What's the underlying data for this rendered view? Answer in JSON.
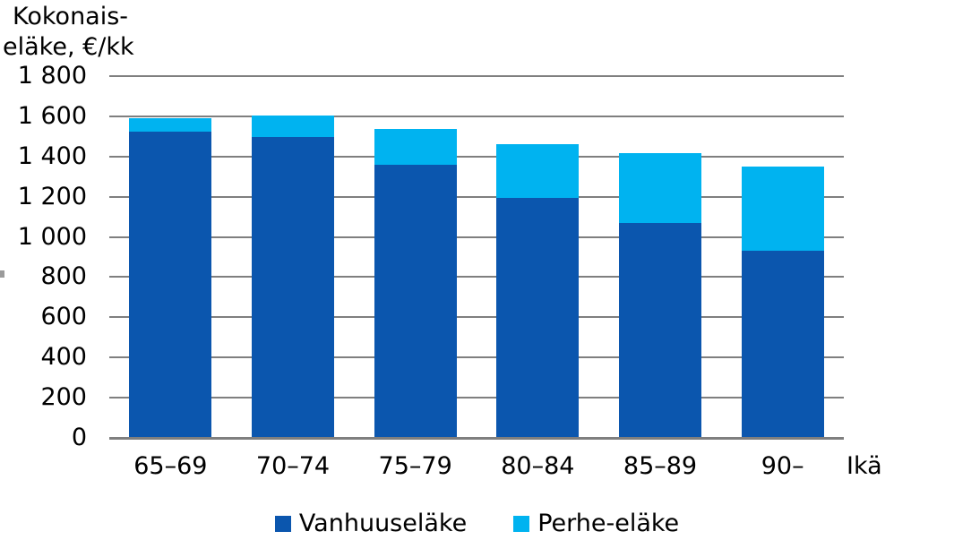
{
  "title": {
    "line1": "Kokonais-",
    "line2": "eläke, €/kk"
  },
  "x_axis_label": "Ikä",
  "legend": [
    {
      "label": "Vanhuuseläke",
      "color": "#0b56ae"
    },
    {
      "label": "Perhe-eläke",
      "color": "#00b3f0"
    }
  ],
  "chart_data": {
    "type": "bar",
    "stacked": true,
    "title": "Kokonaiseläke, €/kk",
    "xlabel": "Ikä",
    "ylabel": "Kokonaiseläke, €/kk",
    "categories": [
      "65–69",
      "70–74",
      "75–79",
      "80–84",
      "85–89",
      "90–"
    ],
    "series": [
      {
        "name": "Vanhuuseläke",
        "color": "#0b56ae",
        "values": [
          1525,
          1495,
          1360,
          1195,
          1070,
          930
        ]
      },
      {
        "name": "Perhe-eläke",
        "color": "#00b3f0",
        "values": [
          65,
          110,
          175,
          265,
          345,
          420
        ]
      }
    ],
    "totals": [
      1590,
      1605,
      1535,
      1460,
      1415,
      1350
    ],
    "ylim": [
      0,
      1800
    ],
    "ytick_step": 200,
    "ytick_labels": [
      "0",
      "200",
      "400",
      "600",
      "800",
      "1 000",
      "1 200",
      "1 400",
      "1 600",
      "1 800"
    ],
    "grid": true,
    "grid_color": "#7f7f7f",
    "legend_position": "bottom"
  }
}
